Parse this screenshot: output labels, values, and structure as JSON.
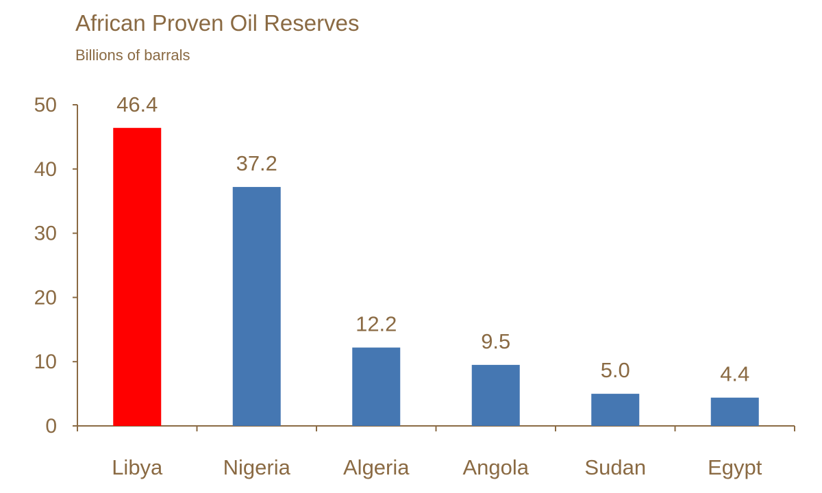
{
  "chart_data": {
    "type": "bar",
    "title": "African Proven Oil Reserves",
    "subtitle": "Billions of barrals",
    "categories": [
      "Libya",
      "Nigeria",
      "Algeria",
      "Angola",
      "Sudan",
      "Egypt"
    ],
    "values": [
      46.4,
      37.2,
      12.2,
      9.5,
      5.0,
      4.4
    ],
    "value_labels": [
      "46.4",
      "37.2",
      "12.2",
      "9.5",
      "5.0",
      "4.4"
    ],
    "highlight_index": 0,
    "colors": {
      "default_bar": "#4577b2",
      "highlight_bar": "#ff0000",
      "axis": "#8a6a43",
      "text": "#8a6a43"
    },
    "yticks": [
      0,
      10,
      20,
      30,
      40,
      50
    ],
    "ylim": [
      0,
      50
    ],
    "xlabel": "",
    "ylabel": "",
    "grid": false
  }
}
